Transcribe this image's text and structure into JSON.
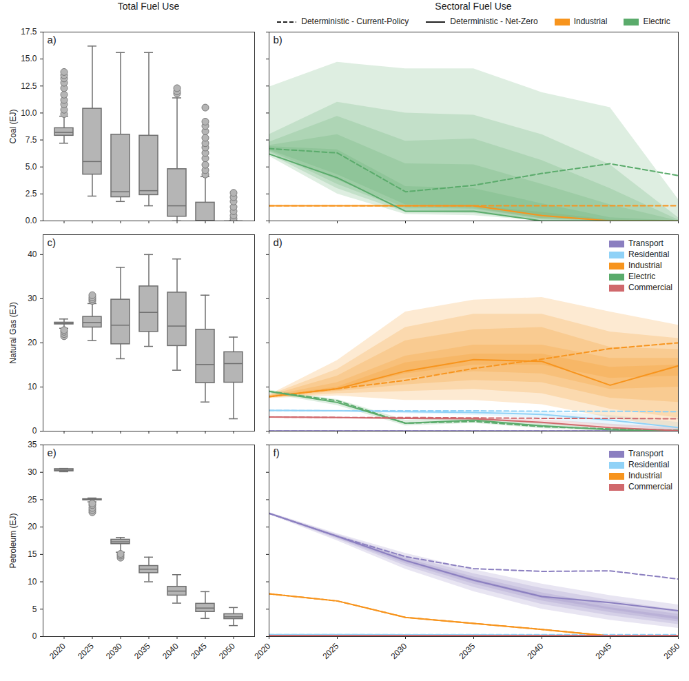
{
  "chart_data": [
    {
      "type": "box",
      "title": "Total Fuel Use",
      "panel": "a)",
      "y_label": "Coal (EJ)",
      "categories": [
        2020,
        2025,
        2030,
        2035,
        2040,
        2045,
        2050
      ],
      "q1": [
        7.9,
        4.3,
        2.2,
        2.4,
        0.4,
        0,
        0
      ],
      "median": [
        8.2,
        5.5,
        2.7,
        2.8,
        1.4,
        0,
        0
      ],
      "q3": [
        8.6,
        10.4,
        8.0,
        7.9,
        4.8,
        1.7,
        0
      ],
      "whisker_low": [
        7.2,
        2.3,
        1.8,
        1.4,
        0,
        0,
        0
      ],
      "whisker_high": [
        9.7,
        16.2,
        15.6,
        15.6,
        11.4,
        4.1,
        0
      ],
      "outliers": [
        [
          9.9,
          10.3,
          10.8,
          11.2,
          11.7,
          12.3,
          12.8,
          13.2,
          13.5,
          13.8
        ],
        [],
        [],
        [],
        [
          11.8,
          12.0,
          12.3
        ],
        [
          4.3,
          4.7,
          5.2,
          5.8,
          6.3,
          6.8,
          7.2,
          7.7,
          8.3,
          8.8,
          9.2,
          10.5
        ],
        [
          0.2,
          0.5,
          0.9,
          1.3,
          1.8,
          2.2,
          2.6
        ]
      ],
      "color": "#b5b5b5",
      "ylim": [
        0,
        17.5
      ],
      "yticks": [
        {
          "value": 0,
          "label": "0.0"
        },
        2.5,
        {
          "value": 5,
          "label": "5.0"
        },
        7.5,
        {
          "value": 10,
          "label": "10.0"
        },
        12.5,
        {
          "value": 15,
          "label": "15.0"
        },
        17.5
      ],
      "tick_labels": "y"
    },
    {
      "type": "line",
      "title": "Sectoral Fuel Use",
      "panel": "b)",
      "x": [
        2020,
        2025,
        2030,
        2035,
        2040,
        2045,
        2050
      ],
      "xlim": [
        2020,
        2050
      ],
      "xticks": [
        2020,
        2025,
        2030,
        2035,
        2040,
        2045,
        2050
      ],
      "ylim": [
        0,
        17.5
      ],
      "yticks": [
        {
          "value": 0,
          "label": "0.0"
        },
        2.5,
        {
          "value": 5,
          "label": "5.0"
        },
        7.5,
        {
          "value": 10,
          "label": "10.0"
        },
        12.5,
        {
          "value": 15,
          "label": "15.0"
        },
        17.5
      ],
      "tick_labels": false,
      "legend": "top",
      "line_legend": [
        {
          "name": "Deterministic - Current-Policy",
          "line_style": "dashed"
        },
        {
          "name": "Deterministic - Net-Zero",
          "line_style": "solid"
        }
      ],
      "series": [
        {
          "name": "Industrial",
          "color": "#f7941d",
          "current_policy": [
            1.4,
            1.4,
            1.4,
            1.4,
            1.4,
            1.4,
            1.4
          ],
          "net_zero": [
            1.4,
            1.4,
            1.4,
            1.4,
            0.5,
            0,
            0
          ],
          "bands": [
            {
              "lower": [
                1.4,
                1.4,
                1.4,
                1.2,
                0.2,
                0,
                0
              ],
              "upper": [
                1.4,
                1.4,
                1.4,
                1.4,
                0.8,
                0.1,
                0
              ]
            }
          ]
        },
        {
          "name": "Electric",
          "color": "#5aab6b",
          "current_policy": [
            6.7,
            6.3,
            2.7,
            3.3,
            4.4,
            5.3,
            4.2
          ],
          "net_zero": [
            6.2,
            4.0,
            0.9,
            0.9,
            0,
            0,
            0
          ],
          "bands": [
            {
              "lower": [
                6.0,
                2.5,
                0.6,
                0.5,
                0,
                0,
                0
              ],
              "upper": [
                12.4,
                14.7,
                14.1,
                14.1,
                11.9,
                10.5,
                2.0
              ]
            },
            {
              "lower": [
                6.2,
                3.0,
                0.8,
                0.7,
                0,
                0,
                0
              ],
              "upper": [
                8.0,
                11.0,
                10.0,
                9.8,
                8.0,
                5.2,
                0.3
              ]
            },
            {
              "lower": [
                6.4,
                3.4,
                1.0,
                0.9,
                0.1,
                0,
                0
              ],
              "upper": [
                7.3,
                9.7,
                7.4,
                7.6,
                5.6,
                3.0,
                0.1
              ]
            },
            {
              "lower": [
                6.5,
                3.8,
                1.2,
                1.1,
                0.2,
                0,
                0
              ],
              "upper": [
                7.0,
                8.0,
                5.3,
                5.2,
                3.4,
                1.5,
                0
              ]
            },
            {
              "lower": [
                6.6,
                4.3,
                1.5,
                1.4,
                0.4,
                0,
                0
              ],
              "upper": [
                6.9,
                6.6,
                3.2,
                3.0,
                1.6,
                0.3,
                0
              ]
            }
          ]
        }
      ]
    },
    {
      "type": "box",
      "panel": "c)",
      "y_label": "Natural Gas (EJ)",
      "categories": [
        2020,
        2025,
        2030,
        2035,
        2040,
        2045,
        2050
      ],
      "q1": [
        24.2,
        23.5,
        19.7,
        22.5,
        19.3,
        10.9,
        11.0
      ],
      "median": [
        24.4,
        24.6,
        24.0,
        26.9,
        23.8,
        15.1,
        15.3
      ],
      "q3": [
        24.6,
        25.9,
        29.8,
        32.8,
        31.4,
        23.0,
        17.9
      ],
      "whisker_low": [
        23.3,
        20.5,
        16.4,
        19.2,
        13.8,
        6.6,
        2.8
      ],
      "whisker_high": [
        25.4,
        28.9,
        37.1,
        40.0,
        39.0,
        30.8,
        21.3
      ],
      "outliers": [
        [
          21.5,
          22.0,
          22.5,
          22.9
        ],
        [
          29.5,
          29.9,
          30.3,
          30.8
        ],
        [],
        [],
        [],
        [],
        []
      ],
      "color": "#b5b5b5",
      "ylim": [
        0,
        44.5
      ],
      "yticks": [
        0,
        10,
        20,
        30,
        40
      ],
      "tick_labels": "y"
    },
    {
      "type": "line",
      "panel": "d)",
      "x": [
        2020,
        2025,
        2030,
        2035,
        2040,
        2045,
        2050
      ],
      "xlim": [
        2020,
        2050
      ],
      "xticks": [
        2020,
        2025,
        2030,
        2035,
        2040,
        2045,
        2050
      ],
      "ylim": [
        0,
        44.5
      ],
      "yticks": [
        0,
        10,
        20,
        30,
        40
      ],
      "tick_labels": false,
      "legend": "upper right",
      "series": [
        {
          "name": "Transport",
          "color": "#8b7fc0",
          "current_policy": [
            0.05,
            0.05,
            0.05,
            0.05,
            0.05,
            0.05,
            0.05
          ],
          "net_zero": [
            0.05,
            0.05,
            0.05,
            0.05,
            0.05,
            0.05,
            0.05
          ]
        },
        {
          "name": "Residential",
          "color": "#90d2f7",
          "current_policy": [
            4.7,
            4.6,
            4.6,
            4.6,
            4.5,
            4.5,
            4.4
          ],
          "net_zero": [
            4.7,
            4.6,
            4.4,
            4.2,
            3.8,
            2.5,
            0.8
          ],
          "bands": [
            {
              "lower": [
                4.6,
                4.4,
                4.0,
                3.6,
                2.8,
                1.2,
                0.1
              ],
              "upper": [
                4.8,
                4.8,
                4.7,
                4.6,
                4.4,
                3.6,
                2.0
              ]
            }
          ]
        },
        {
          "name": "Industrial",
          "color": "#f7941d",
          "current_policy": [
            7.8,
            9.6,
            11.5,
            14.2,
            16.3,
            18.7,
            20.0
          ],
          "net_zero": [
            7.8,
            9.6,
            13.6,
            16.2,
            15.8,
            10.4,
            14.8
          ],
          "bands": [
            {
              "lower": [
                7.4,
                8.0,
                7.0,
                7.0,
                6.0,
                3.0,
                0.5
              ],
              "upper": [
                8.2,
                16.0,
                27.0,
                29.7,
                30.3,
                27.0,
                24.0
              ]
            },
            {
              "lower": [
                7.5,
                8.5,
                9.0,
                9.5,
                8.5,
                5.0,
                3.0
              ],
              "upper": [
                8.1,
                14.0,
                23.5,
                26.5,
                26.5,
                22.5,
                21.0
              ]
            },
            {
              "lower": [
                7.6,
                9.0,
                10.5,
                11.5,
                11.0,
                7.5,
                6.5
              ],
              "upper": [
                8.0,
                12.5,
                20.5,
                23.0,
                23.5,
                19.0,
                18.5
              ]
            },
            {
              "lower": [
                7.7,
                9.2,
                12.0,
                13.5,
                13.0,
                9.5,
                10.0
              ],
              "upper": [
                7.9,
                11.0,
                17.0,
                19.5,
                19.5,
                16.5,
                16.5
              ]
            },
            {
              "lower": [
                7.8,
                9.4,
                13.0,
                15.0,
                15.0,
                12.0,
                12.5
              ],
              "upper": [
                7.9,
                10.0,
                15.5,
                17.5,
                17.5,
                14.5,
                15.0
              ]
            }
          ]
        },
        {
          "name": "Electric",
          "color": "#5aab6b",
          "current_policy": [
            9.0,
            6.9,
            1.8,
            2.2,
            1.0,
            0.5,
            0.2
          ],
          "net_zero": [
            9.0,
            6.5,
            1.8,
            2.5,
            1.2,
            0.3,
            0
          ],
          "bands": [
            {
              "lower": [
                8.5,
                5.8,
                1.2,
                1.8,
                0.6,
                0,
                0
              ],
              "upper": [
                9.3,
                7.2,
                2.5,
                3.0,
                1.8,
                0.8,
                0.3
              ]
            }
          ]
        },
        {
          "name": "Commercial",
          "color": "#d0686c",
          "current_policy": [
            3.2,
            3.1,
            3.1,
            3.0,
            2.9,
            2.9,
            2.8
          ],
          "net_zero": [
            3.2,
            3.1,
            2.9,
            2.8,
            2.0,
            0.8,
            0.1
          ],
          "bands": [
            {
              "lower": [
                3.1,
                3.0,
                2.7,
                2.5,
                1.6,
                0.5,
                0
              ],
              "upper": [
                3.3,
                3.2,
                3.1,
                3.0,
                2.6,
                1.6,
                0.8
              ]
            }
          ]
        }
      ]
    },
    {
      "type": "box",
      "panel": "e)",
      "y_label": "Petroleum (EJ)",
      "categories": [
        2020,
        2025,
        2030,
        2035,
        2040,
        2045,
        2050
      ],
      "q1": [
        30.2,
        24.9,
        16.9,
        11.6,
        7.5,
        4.5,
        3.2
      ],
      "median": [
        30.4,
        25.0,
        17.3,
        12.3,
        8.3,
        5.2,
        3.6
      ],
      "q3": [
        30.6,
        25.1,
        17.7,
        12.9,
        9.1,
        6.0,
        4.1
      ],
      "whisker_low": [
        30.1,
        24.6,
        15.4,
        10.0,
        6.1,
        3.3,
        2.0
      ],
      "whisker_high": [
        30.7,
        25.3,
        18.1,
        14.5,
        11.3,
        8.2,
        5.3
      ],
      "outliers": [
        [],
        [
          22.7,
          23.1,
          23.5,
          24.0,
          24.3
        ],
        [
          14.4,
          14.8,
          15.1
        ],
        [],
        [],
        [],
        []
      ],
      "color": "#b5b5b5",
      "ylim": [
        0,
        35
      ],
      "yticks": [
        0,
        5,
        10,
        15,
        20,
        25,
        30,
        35
      ],
      "tick_labels": true
    },
    {
      "type": "line",
      "panel": "f)",
      "x": [
        2020,
        2025,
        2030,
        2035,
        2040,
        2045,
        2050
      ],
      "xlim": [
        2020,
        2050
      ],
      "xticks": [
        2020,
        2025,
        2030,
        2035,
        2040,
        2045,
        2050
      ],
      "ylim": [
        0,
        35
      ],
      "yticks": [
        0,
        5,
        10,
        15,
        20,
        25,
        30,
        35
      ],
      "tick_labels": "x",
      "legend": "upper right",
      "series": [
        {
          "name": "Transport",
          "color": "#8b7fc0",
          "current_policy": [
            22.5,
            18.3,
            14.6,
            12.4,
            11.9,
            12.0,
            10.5
          ],
          "net_zero": [
            22.5,
            18.3,
            13.9,
            10.3,
            7.3,
            6.2,
            4.7
          ],
          "bands": [
            {
              "lower": [
                22.3,
                17.5,
                12.3,
                8.2,
                5.0,
                3.0,
                1.5
              ],
              "upper": [
                22.7,
                18.8,
                15.2,
                12.2,
                9.6,
                7.5,
                5.8
              ]
            },
            {
              "lower": [
                22.4,
                17.8,
                12.9,
                9.0,
                5.9,
                3.8,
                2.2
              ],
              "upper": [
                22.6,
                18.6,
                14.7,
                11.5,
                8.8,
                6.6,
                4.8
              ]
            },
            {
              "lower": [
                22.4,
                18.0,
                13.3,
                9.6,
                6.5,
                4.4,
                2.7
              ],
              "upper": [
                22.6,
                18.5,
                14.3,
                10.9,
                8.0,
                5.8,
                4.1
              ]
            },
            {
              "lower": [
                22.5,
                18.1,
                13.6,
                10.0,
                7.0,
                4.9,
                3.1
              ],
              "upper": [
                22.5,
                18.4,
                14.0,
                10.5,
                7.5,
                5.3,
                3.6
              ]
            }
          ]
        },
        {
          "name": "Residential",
          "color": "#90d2f7",
          "current_policy": [
            0.35,
            0.35,
            0.35,
            0.35,
            0.35,
            0.35,
            0.35
          ],
          "net_zero": [
            0.35,
            0.35,
            0.3,
            0.3,
            0.25,
            0.2,
            0.2
          ]
        },
        {
          "name": "Industrial",
          "color": "#f7941d",
          "current_policy": [
            7.8,
            6.5,
            3.5,
            2.4,
            1.3,
            0.1,
            0.1
          ],
          "net_zero": [
            7.8,
            6.5,
            3.5,
            2.4,
            1.3,
            0.1,
            0.1
          ]
        },
        {
          "name": "Commercial",
          "color": "#d0686c",
          "current_policy": [
            0.2,
            0.2,
            0.2,
            0.2,
            0.2,
            0.2,
            0.2
          ],
          "net_zero": [
            0.2,
            0.2,
            0.2,
            0.2,
            0.2,
            0.2,
            0.2
          ]
        }
      ]
    }
  ]
}
